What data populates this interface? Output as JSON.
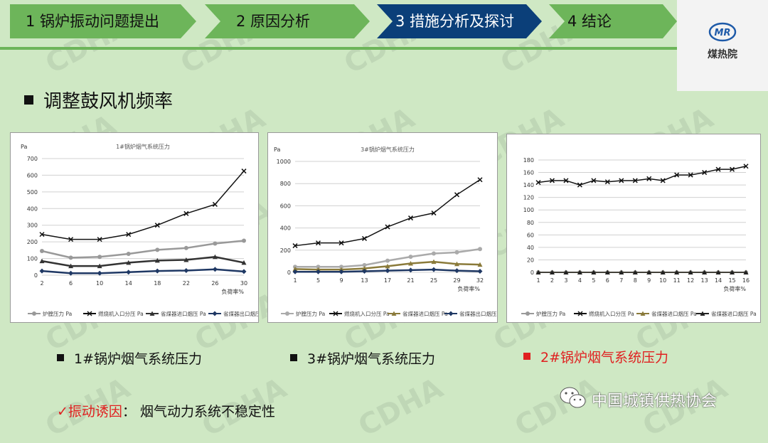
{
  "nav": {
    "steps": [
      {
        "label": "1 锅炉振动问题提出"
      },
      {
        "label": "2 原因分析"
      },
      {
        "label": "3 措施分析及探讨"
      },
      {
        "label": "4 结论"
      }
    ]
  },
  "logo": {
    "text": "煤热院",
    "mark": "MR"
  },
  "heading": "调整鼓风机频率",
  "watermark": "CDHA",
  "colors": {
    "nav_green": "#6db55a",
    "nav_active": "#0b3f79",
    "accent_red": "#e02020"
  },
  "chart_data": [
    {
      "type": "line",
      "title": "1#锅炉烟气系统压力",
      "ylabel": "Pa",
      "xlabel": "负荷率%",
      "ylim": [
        0,
        700
      ],
      "yticks": [
        0,
        100,
        200,
        300,
        400,
        500,
        600,
        700
      ],
      "x": [
        2,
        6,
        10,
        14,
        18,
        22,
        26,
        30
      ],
      "grid": true,
      "legend": "bottom",
      "series": [
        {
          "name": "炉膛压力 Pa",
          "values": [
            145,
            105,
            110,
            128,
            152,
            163,
            190,
            207
          ],
          "color": "#999999",
          "marker": "circle"
        },
        {
          "name": "燃烧机入口分压 Pa",
          "values": [
            245,
            215,
            215,
            245,
            300,
            370,
            425,
            625
          ],
          "color": "#111111",
          "marker": "x"
        },
        {
          "name": "省煤器进口烟压 Pa",
          "values": [
            85,
            55,
            55,
            75,
            88,
            92,
            110,
            75
          ],
          "color": "#333333",
          "marker": "triangle"
        },
        {
          "name": "省煤器出口烟压 Pa",
          "values": [
            25,
            12,
            12,
            18,
            25,
            28,
            35,
            22
          ],
          "color": "#1f3864",
          "marker": "diamond"
        }
      ]
    },
    {
      "type": "line",
      "title": "3#锅炉烟气系统压力",
      "ylabel": "Pa",
      "xlabel": "负荷率%",
      "ylim": [
        0,
        1000
      ],
      "yticks": [
        0,
        200,
        400,
        600,
        800,
        1000
      ],
      "x": [
        1,
        5,
        9,
        13,
        17,
        21,
        25,
        29,
        32
      ],
      "grid": true,
      "legend": "bottom",
      "series": [
        {
          "name": "炉膛压力 Pa",
          "values": [
            50,
            50,
            50,
            65,
            105,
            140,
            170,
            180,
            210
          ],
          "color": "#aaaaaa",
          "marker": "circle"
        },
        {
          "name": "燃烧机入口分压 Pa",
          "values": [
            240,
            265,
            265,
            305,
            410,
            490,
            535,
            700,
            835
          ],
          "color": "#111111",
          "marker": "x"
        },
        {
          "name": "省煤器进口烟压 Pa",
          "values": [
            30,
            25,
            25,
            35,
            55,
            80,
            95,
            75,
            70
          ],
          "color": "#8a7a3a",
          "marker": "triangle"
        },
        {
          "name": "省煤器出口烟压 Pa",
          "values": [
            5,
            5,
            5,
            10,
            15,
            20,
            25,
            15,
            10
          ],
          "color": "#1f3864",
          "marker": "diamond"
        }
      ]
    },
    {
      "type": "line",
      "title": "",
      "ylabel": "",
      "xlabel": "负荷率%",
      "ylim": [
        0,
        180
      ],
      "yticks": [
        0,
        20,
        40,
        60,
        80,
        100,
        120,
        140,
        160,
        180
      ],
      "x": [
        1,
        2,
        3,
        4,
        5,
        6,
        7,
        8,
        9,
        10,
        11,
        12,
        13,
        14,
        15,
        16
      ],
      "grid": true,
      "legend": "bottom",
      "series": [
        {
          "name": "炉膛压力 Pa",
          "values": [
            0,
            0,
            0,
            0,
            0,
            0,
            0,
            0,
            0,
            0,
            0,
            0,
            0,
            0,
            0,
            0
          ],
          "color": "#999999",
          "marker": "circle"
        },
        {
          "name": "燃烧机入口分压 Pa",
          "values": [
            144,
            147,
            147,
            140,
            147,
            145,
            147,
            147,
            150,
            147,
            156,
            156,
            160,
            165,
            165,
            170
          ],
          "color": "#111111",
          "marker": "x"
        },
        {
          "name": "省煤器进口烟压 Pa",
          "values": [
            0,
            0,
            0,
            0,
            0,
            0,
            0,
            0,
            0,
            0,
            0,
            0,
            0,
            0,
            0,
            0
          ],
          "color": "#8a7a3a",
          "marker": "triangle"
        },
        {
          "name": "省煤器进口烟压 Pa",
          "values": [
            0,
            0,
            0,
            0,
            0,
            0,
            0,
            0,
            0,
            0,
            0,
            0,
            0,
            0,
            0,
            0
          ],
          "color": "#222222",
          "marker": "triangle"
        }
      ]
    }
  ],
  "captions": [
    {
      "text": "1#锅炉烟气系统压力"
    },
    {
      "text": "3#锅炉烟气系统压力"
    },
    {
      "text": "2#锅炉烟气系统压力"
    }
  ],
  "cause": {
    "check": "✓",
    "label": "振动诱因",
    "sep": "：",
    "text": "烟气动力系统不稳定性"
  },
  "wechat": {
    "text": "中国城镇供热协会",
    "icon": "wechat-icon"
  }
}
